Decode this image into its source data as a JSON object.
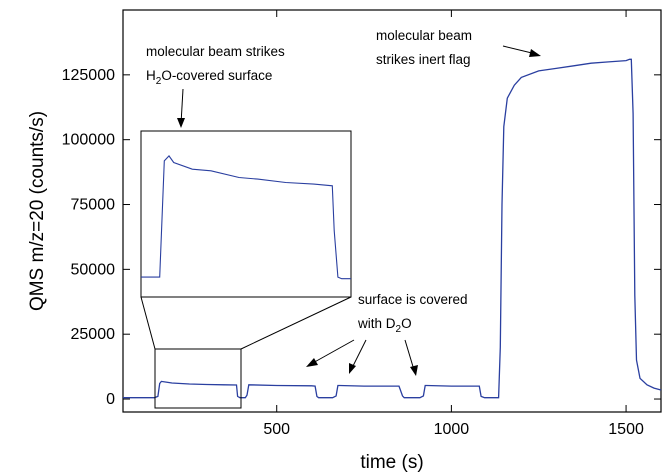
{
  "chart_data": {
    "type": "line",
    "title": "",
    "xlabel": "time (s)",
    "ylabel": "QMS m/z=20 (counts/s)",
    "xlim": [
      60,
      1600
    ],
    "ylim": [
      -5000,
      150000
    ],
    "xticks": [
      500,
      1000,
      1500
    ],
    "yticks": [
      0,
      25000,
      50000,
      75000,
      100000,
      125000
    ],
    "grid": false,
    "legend": "none",
    "line_color": "#2a3fa0",
    "series": [
      {
        "x": [
          60,
          150,
          160,
          165,
          170,
          200,
          250,
          300,
          350,
          385,
          388,
          395,
          410,
          415,
          420,
          500,
          600,
          610,
          615,
          620,
          660,
          670,
          675,
          680,
          750,
          850,
          860,
          865,
          870,
          910,
          920,
          925,
          930,
          1000,
          1080,
          1085,
          1095,
          1120,
          1135,
          1140,
          1145,
          1150,
          1160,
          1180,
          1200,
          1250,
          1300,
          1350,
          1400,
          1450,
          1500,
          1510,
          1515,
          1520,
          1525,
          1530,
          1540,
          1560,
          1580,
          1600
        ],
        "y": [
          500,
          500,
          1000,
          6000,
          6800,
          6200,
          5800,
          5600,
          5500,
          5400,
          1000,
          500,
          500,
          1500,
          5500,
          5200,
          5100,
          5000,
          1000,
          500,
          500,
          1200,
          5200,
          5200,
          5000,
          5000,
          1200,
          500,
          500,
          500,
          1200,
          5200,
          5200,
          5000,
          5000,
          1000,
          500,
          500,
          500,
          20000,
          75000,
          105000,
          116000,
          121000,
          124000,
          126500,
          127500,
          128500,
          129500,
          130000,
          130500,
          131000,
          131000,
          110000,
          40000,
          15000,
          8000,
          5500,
          4200,
          3500
        ]
      }
    ],
    "inset": {
      "type": "line",
      "description_hidden": true,
      "x": [
        175,
        195,
        200,
        205,
        210,
        230,
        250,
        280,
        300,
        330,
        360,
        380,
        382,
        386,
        390,
        400
      ],
      "y": [
        0.12,
        0.12,
        0.82,
        0.85,
        0.81,
        0.77,
        0.76,
        0.72,
        0.71,
        0.69,
        0.68,
        0.67,
        0.4,
        0.12,
        0.11,
        0.11
      ]
    },
    "annotations": [
      {
        "id": "beam-h2o",
        "line1": "molecular beam strikes",
        "line2_pre": "H",
        "line2_sub": "2",
        "line2_post": "O-covered surface"
      },
      {
        "id": "beam-flag",
        "line1": "molecular beam",
        "line2": "strikes inert flag"
      },
      {
        "id": "d2o",
        "line1": "surface is covered",
        "line2_pre": "with D",
        "line2_sub": "2",
        "line2_post": "O"
      }
    ]
  }
}
